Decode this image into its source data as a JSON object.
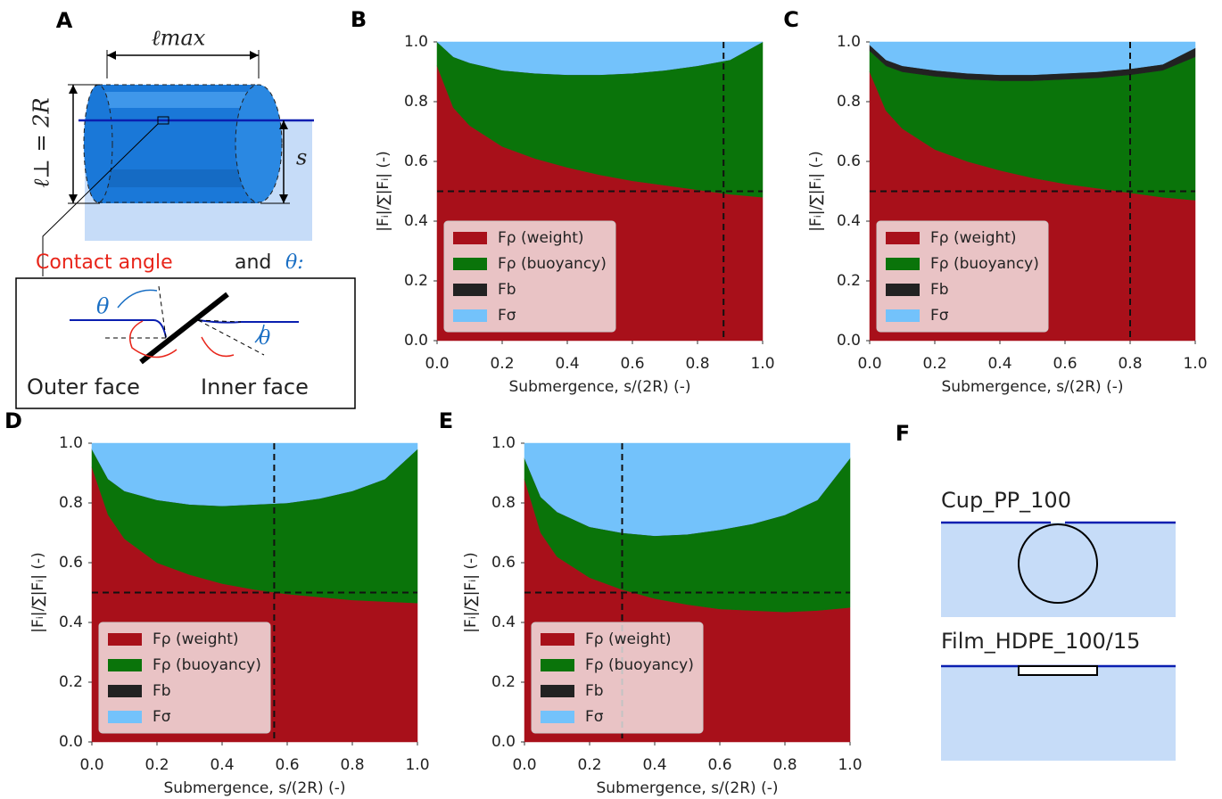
{
  "diagram_a": {
    "label": "A",
    "l_max": "ℓmax",
    "l_perp": "ℓ⊥ = 2R",
    "s": "s",
    "contact_angle": "Contact angle",
    "and": "and",
    "theta_colon": "θ:",
    "theta_outer": "θ",
    "theta_inner": "θ",
    "outer_face": "Outer face",
    "inner_face": "Inner face"
  },
  "diagram_f": {
    "label": "F",
    "cup": "Cup_PP_100",
    "film": "Film_HDPE_100/15"
  },
  "chart_data": [
    {
      "type": "stacked_area",
      "label": "B",
      "xlabel": "Submergence, s/(2R) (-)",
      "ylabel": "|Fᵢ|/∑|Fᵢ| (-)",
      "x": [
        0,
        0.05,
        0.1,
        0.2,
        0.3,
        0.4,
        0.5,
        0.6,
        0.7,
        0.8,
        0.9,
        1.0
      ],
      "series": [
        {
          "name": "Fρ (weight)",
          "color": "#a8101a",
          "values": [
            0.92,
            0.78,
            0.72,
            0.65,
            0.61,
            0.58,
            0.555,
            0.535,
            0.52,
            0.505,
            0.49,
            0.48
          ]
        },
        {
          "name": "Fρ (buoyancy)",
          "color": "#0a740a",
          "values": [
            0.08,
            0.17,
            0.21,
            0.255,
            0.285,
            0.31,
            0.335,
            0.36,
            0.385,
            0.415,
            0.45,
            0.52
          ]
        },
        {
          "name": "Fb",
          "color": "#222222",
          "values": [
            0,
            0,
            0,
            0,
            0,
            0,
            0,
            0,
            0,
            0,
            0,
            0
          ]
        },
        {
          "name": "Fσ",
          "color": "#73c2fb",
          "values": [
            0,
            0.05,
            0.07,
            0.095,
            0.105,
            0.11,
            0.11,
            0.105,
            0.095,
            0.08,
            0.06,
            0
          ]
        }
      ],
      "vline": 0.88,
      "hline": 0.5,
      "xlim": [
        0,
        1
      ],
      "ylim": [
        0,
        1
      ],
      "xticks": [
        {
          "value": 0,
          "label": "0.0"
        },
        {
          "value": 0.2,
          "label": "0.2"
        },
        {
          "value": 0.4,
          "label": "0.4"
        },
        {
          "value": 0.6,
          "label": "0.6"
        },
        {
          "value": 0.8,
          "label": "0.8"
        },
        {
          "value": 1,
          "label": "1.0"
        }
      ],
      "yticks": [
        {
          "value": 0,
          "label": "0.0"
        },
        {
          "value": 0.2,
          "label": "0.2"
        },
        {
          "value": 0.4,
          "label": "0.4"
        },
        {
          "value": 0.6,
          "label": "0.6"
        },
        {
          "value": 0.8,
          "label": "0.8"
        },
        {
          "value": 1,
          "label": "1.0"
        }
      ],
      "legend": "lower left"
    },
    {
      "type": "stacked_area",
      "label": "C",
      "xlabel": "Submergence, s/(2R) (-)",
      "ylabel": "|Fᵢ|/∑|Fᵢ| (-)",
      "x": [
        0,
        0.05,
        0.1,
        0.2,
        0.3,
        0.4,
        0.5,
        0.6,
        0.7,
        0.8,
        0.9,
        1.0
      ],
      "series": [
        {
          "name": "Fρ (weight)",
          "color": "#a8101a",
          "values": [
            0.9,
            0.77,
            0.71,
            0.64,
            0.6,
            0.57,
            0.545,
            0.525,
            0.51,
            0.495,
            0.48,
            0.47
          ]
        },
        {
          "name": "Fρ (buoyancy)",
          "color": "#0a740a",
          "values": [
            0.07,
            0.15,
            0.19,
            0.245,
            0.275,
            0.3,
            0.325,
            0.35,
            0.37,
            0.395,
            0.425,
            0.48
          ]
        },
        {
          "name": "Fb",
          "color": "#222222",
          "values": [
            0.02,
            0.02,
            0.02,
            0.02,
            0.02,
            0.02,
            0.02,
            0.02,
            0.02,
            0.02,
            0.02,
            0.03
          ]
        },
        {
          "name": "Fσ",
          "color": "#73c2fb",
          "values": [
            0.01,
            0.06,
            0.08,
            0.095,
            0.105,
            0.11,
            0.11,
            0.105,
            0.1,
            0.09,
            0.075,
            0.02
          ]
        }
      ],
      "vline": 0.8,
      "hline": 0.5,
      "xlim": [
        0,
        1
      ],
      "ylim": [
        0,
        1
      ],
      "xticks": [
        {
          "value": 0,
          "label": "0.0"
        },
        {
          "value": 0.2,
          "label": "0.2"
        },
        {
          "value": 0.4,
          "label": "0.4"
        },
        {
          "value": 0.6,
          "label": "0.6"
        },
        {
          "value": 0.8,
          "label": "0.8"
        },
        {
          "value": 1,
          "label": "1.0"
        }
      ],
      "yticks": [
        {
          "value": 0,
          "label": "0.0"
        },
        {
          "value": 0.2,
          "label": "0.2"
        },
        {
          "value": 0.4,
          "label": "0.4"
        },
        {
          "value": 0.6,
          "label": "0.6"
        },
        {
          "value": 0.8,
          "label": "0.8"
        },
        {
          "value": 1,
          "label": "1.0"
        }
      ],
      "legend": "lower left"
    },
    {
      "type": "stacked_area",
      "label": "D",
      "xlabel": "Submergence, s/(2R) (-)",
      "ylabel": "|Fᵢ|/∑|Fᵢ| (-)",
      "x": [
        0,
        0.05,
        0.1,
        0.2,
        0.3,
        0.4,
        0.5,
        0.6,
        0.7,
        0.8,
        0.9,
        1.0
      ],
      "series": [
        {
          "name": "Fρ (weight)",
          "color": "#a8101a",
          "values": [
            0.92,
            0.76,
            0.68,
            0.6,
            0.56,
            0.53,
            0.51,
            0.495,
            0.485,
            0.475,
            0.47,
            0.465
          ]
        },
        {
          "name": "Fρ (buoyancy)",
          "color": "#0a740a",
          "values": [
            0.06,
            0.12,
            0.16,
            0.21,
            0.235,
            0.26,
            0.285,
            0.305,
            0.33,
            0.365,
            0.41,
            0.515
          ]
        },
        {
          "name": "Fb",
          "color": "#222222",
          "values": [
            0,
            0,
            0,
            0,
            0,
            0,
            0,
            0,
            0,
            0,
            0,
            0
          ]
        },
        {
          "name": "Fσ",
          "color": "#73c2fb",
          "values": [
            0.02,
            0.12,
            0.16,
            0.19,
            0.205,
            0.21,
            0.205,
            0.2,
            0.185,
            0.16,
            0.12,
            0.02
          ]
        }
      ],
      "vline": 0.56,
      "hline": 0.5,
      "xlim": [
        0,
        1
      ],
      "ylim": [
        0,
        1
      ],
      "xticks": [
        {
          "value": 0,
          "label": "0.0"
        },
        {
          "value": 0.2,
          "label": "0.2"
        },
        {
          "value": 0.4,
          "label": "0.4"
        },
        {
          "value": 0.6,
          "label": "0.6"
        },
        {
          "value": 0.8,
          "label": "0.8"
        },
        {
          "value": 1,
          "label": "1.0"
        }
      ],
      "yticks": [
        {
          "value": 0,
          "label": "0.0"
        },
        {
          "value": 0.2,
          "label": "0.2"
        },
        {
          "value": 0.4,
          "label": "0.4"
        },
        {
          "value": 0.6,
          "label": "0.6"
        },
        {
          "value": 0.8,
          "label": "0.8"
        },
        {
          "value": 1,
          "label": "1.0"
        }
      ],
      "legend": "lower left"
    },
    {
      "type": "stacked_area",
      "label": "E",
      "xlabel": "Submergence, s/(2R) (-)",
      "ylabel": "|Fᵢ|/∑|Fᵢ| (-)",
      "x": [
        0,
        0.05,
        0.1,
        0.2,
        0.3,
        0.4,
        0.5,
        0.6,
        0.7,
        0.8,
        0.9,
        1.0
      ],
      "series": [
        {
          "name": "Fρ (weight)",
          "color": "#a8101a",
          "values": [
            0.88,
            0.7,
            0.62,
            0.55,
            0.51,
            0.48,
            0.46,
            0.445,
            0.44,
            0.435,
            0.44,
            0.45
          ]
        },
        {
          "name": "Fρ (buoyancy)",
          "color": "#0a740a",
          "values": [
            0.07,
            0.12,
            0.15,
            0.17,
            0.19,
            0.21,
            0.235,
            0.265,
            0.29,
            0.325,
            0.37,
            0.5
          ]
        },
        {
          "name": "Fb",
          "color": "#222222",
          "values": [
            0,
            0,
            0,
            0,
            0,
            0,
            0,
            0,
            0,
            0,
            0,
            0
          ]
        },
        {
          "name": "Fσ",
          "color": "#73c2fb",
          "values": [
            0.05,
            0.18,
            0.23,
            0.28,
            0.3,
            0.31,
            0.305,
            0.29,
            0.27,
            0.24,
            0.19,
            0.05
          ]
        }
      ],
      "vline": 0.3,
      "hline": 0.5,
      "xlim": [
        0,
        1
      ],
      "ylim": [
        0,
        1
      ],
      "xticks": [
        {
          "value": 0,
          "label": "0.0"
        },
        {
          "value": 0.2,
          "label": "0.2"
        },
        {
          "value": 0.4,
          "label": "0.4"
        },
        {
          "value": 0.6,
          "label": "0.6"
        },
        {
          "value": 0.8,
          "label": "0.8"
        },
        {
          "value": 1,
          "label": "1.0"
        }
      ],
      "yticks": [
        {
          "value": 0,
          "label": "0.0"
        },
        {
          "value": 0.2,
          "label": "0.2"
        },
        {
          "value": 0.4,
          "label": "0.4"
        },
        {
          "value": 0.6,
          "label": "0.6"
        },
        {
          "value": 0.8,
          "label": "0.8"
        },
        {
          "value": 1,
          "label": "1.0"
        }
      ],
      "legend": "lower left"
    }
  ]
}
